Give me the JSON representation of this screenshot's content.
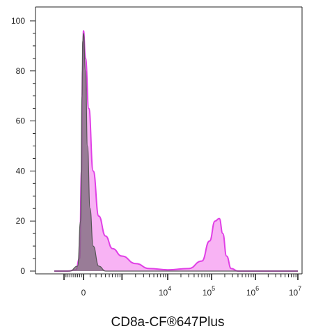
{
  "chart_data": {
    "type": "area",
    "title": "",
    "xlabel": "CD8a-CF®647Plus",
    "ylabel": "",
    "ylim": [
      0,
      105
    ],
    "y_ticks": [
      "0",
      "20",
      "40",
      "60",
      "80",
      "100"
    ],
    "x_ticks": [
      {
        "base": "0",
        "exp": ""
      },
      {
        "base": "10",
        "exp": "4"
      },
      {
        "base": "10",
        "exp": "5"
      },
      {
        "base": "10",
        "exp": "6"
      },
      {
        "base": "10",
        "exp": "7"
      }
    ],
    "x_scale": "biexponential",
    "grid": false,
    "series": [
      {
        "color": "#e040e6",
        "fill": "#f7a6f2",
        "points": [
          [
            -1500,
            0
          ],
          [
            -800,
            0
          ],
          [
            -400,
            0.5
          ],
          [
            -200,
            5
          ],
          [
            -100,
            40
          ],
          [
            -50,
            80
          ],
          [
            0,
            96
          ],
          [
            30,
            85
          ],
          [
            80,
            65
          ],
          [
            150,
            40
          ],
          [
            250,
            22
          ],
          [
            400,
            14
          ],
          [
            600,
            9
          ],
          [
            1000,
            6
          ],
          [
            2000,
            3
          ],
          [
            4000,
            1
          ],
          [
            10000,
            0.5
          ],
          [
            30000,
            1
          ],
          [
            60000,
            4
          ],
          [
            90000,
            12
          ],
          [
            120000,
            20
          ],
          [
            150000,
            21
          ],
          [
            180000,
            15
          ],
          [
            220000,
            6
          ],
          [
            280000,
            1
          ],
          [
            400000,
            0
          ],
          [
            10000000,
            0
          ]
        ]
      },
      {
        "color": "#555555",
        "fill": "#7a6a78",
        "points": [
          [
            -1500,
            0
          ],
          [
            -700,
            0
          ],
          [
            -300,
            2
          ],
          [
            -150,
            20
          ],
          [
            -80,
            70
          ],
          [
            -40,
            92
          ],
          [
            0,
            95
          ],
          [
            30,
            80
          ],
          [
            60,
            50
          ],
          [
            100,
            25
          ],
          [
            150,
            10
          ],
          [
            250,
            2
          ],
          [
            400,
            0
          ],
          [
            10000000,
            0
          ]
        ]
      }
    ]
  }
}
